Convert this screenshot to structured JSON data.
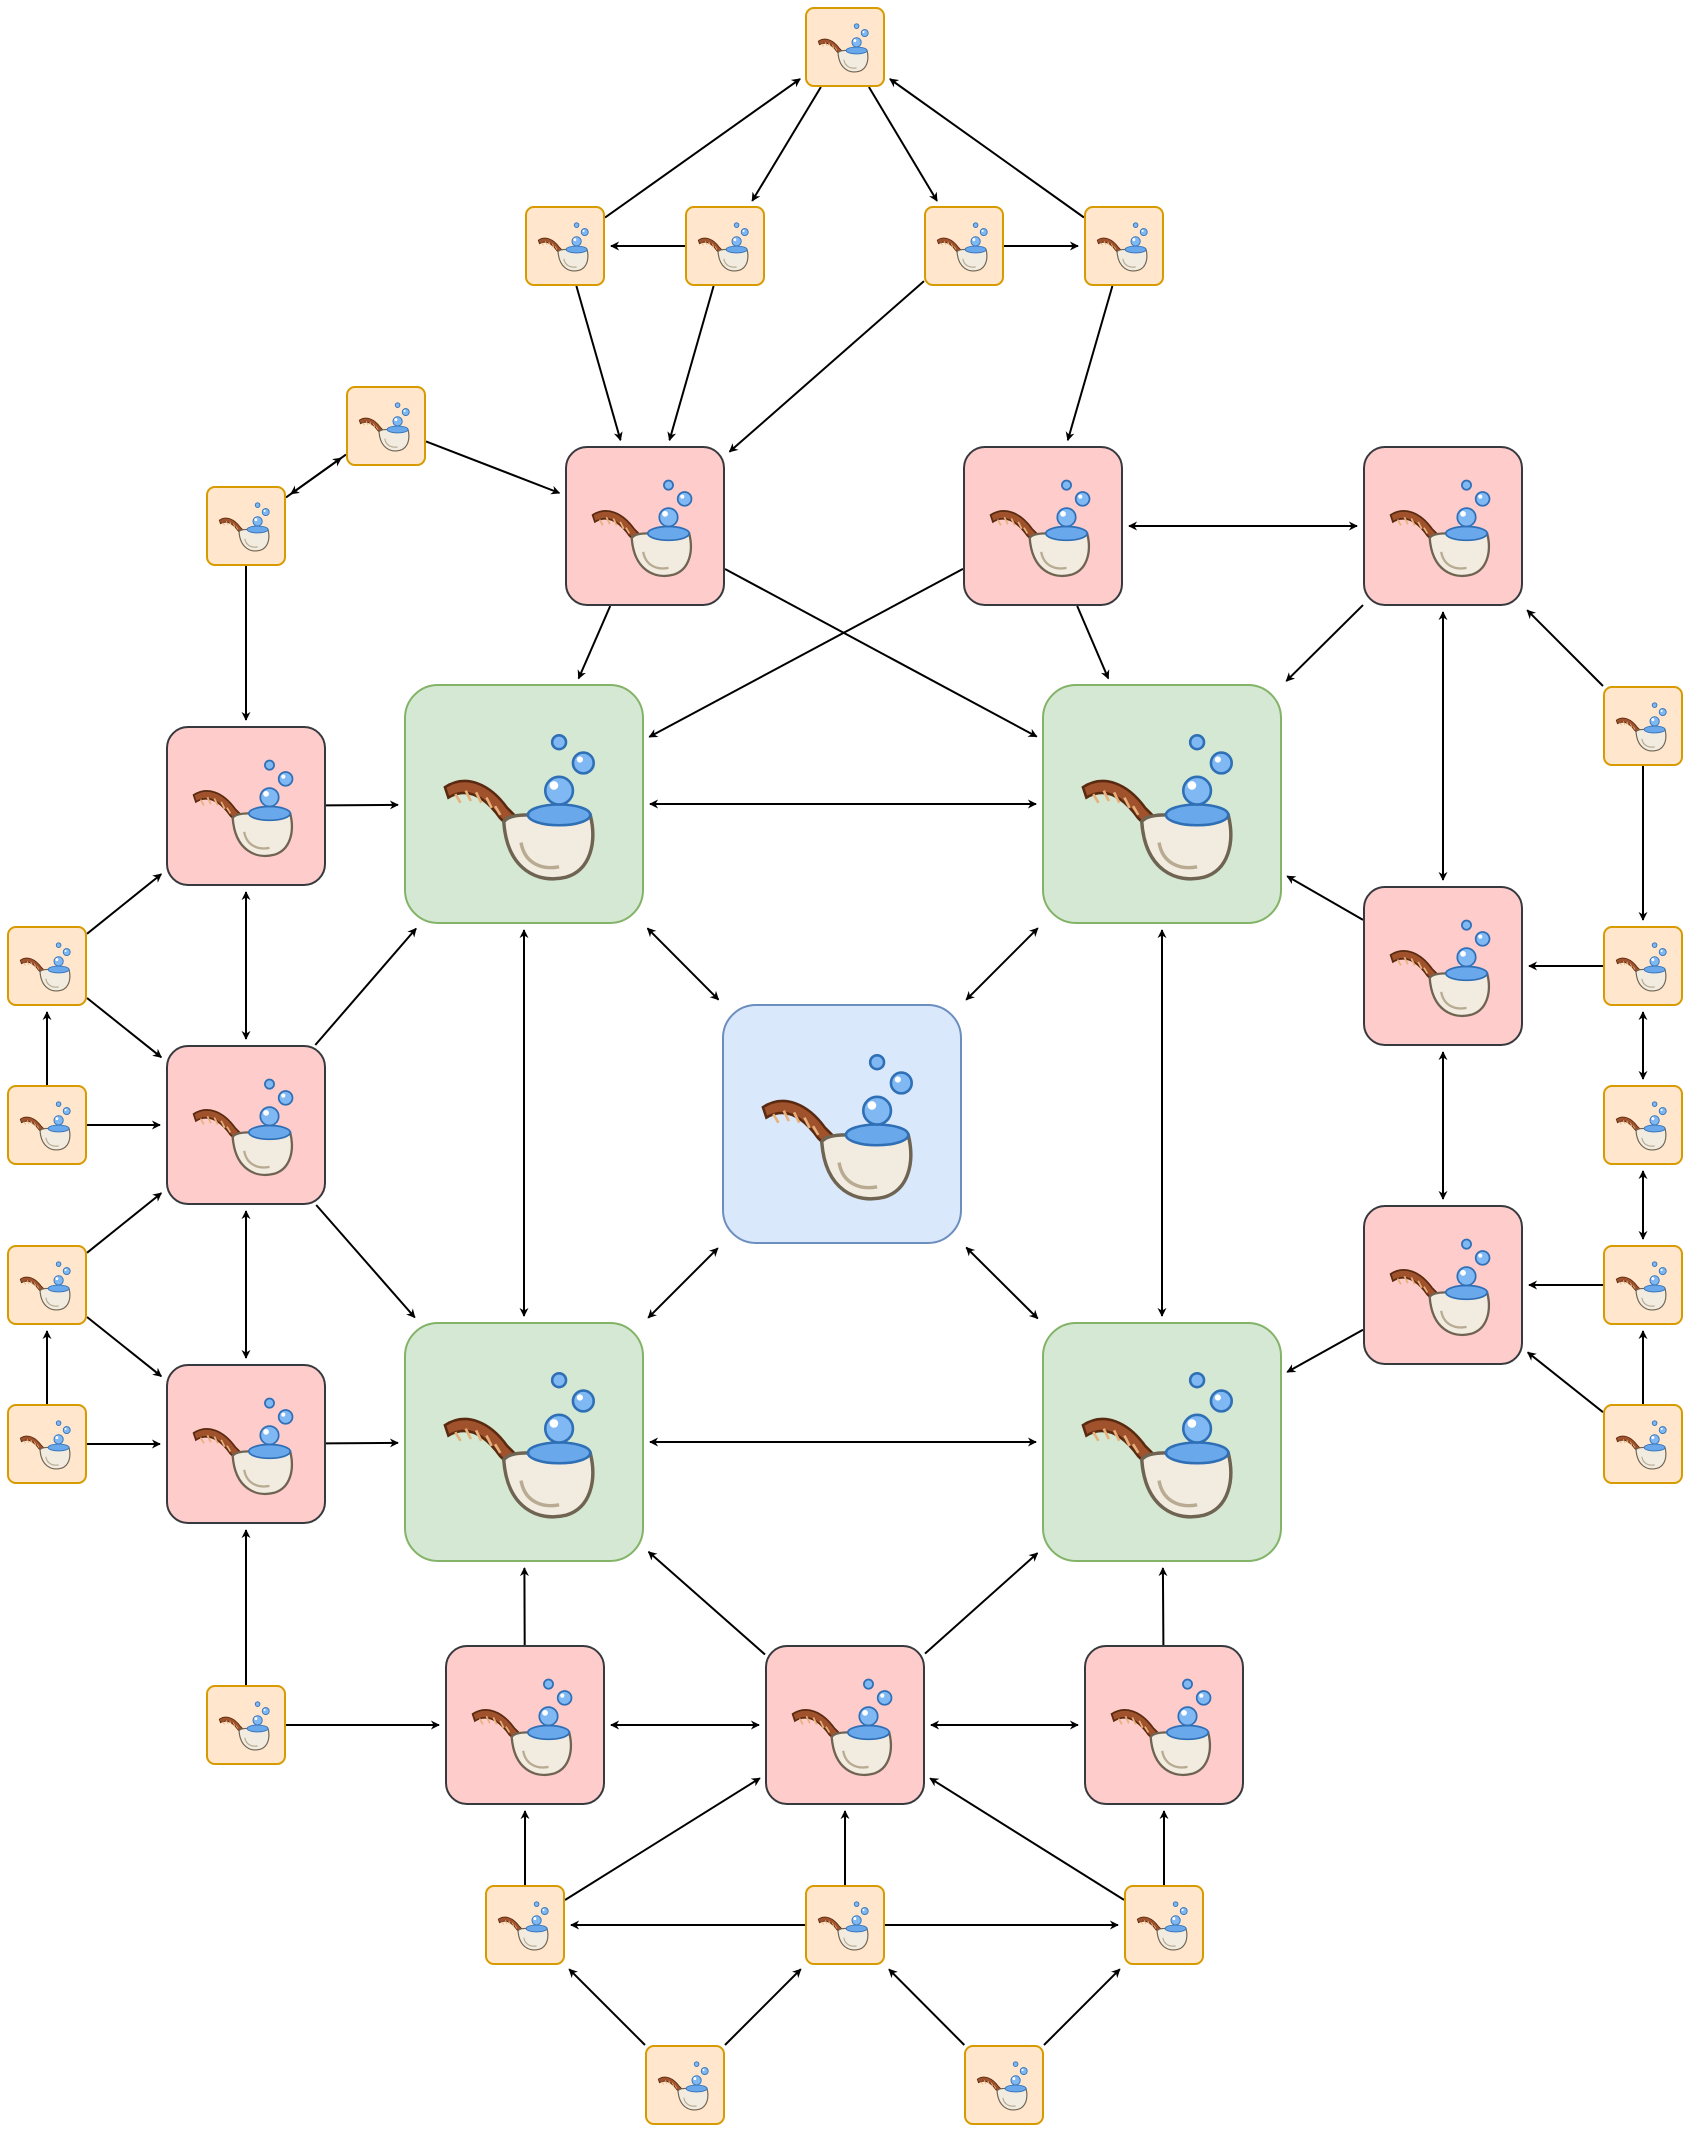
{
  "diagram": {
    "icon": "pipe-with-bubbles-icon",
    "colors": {
      "hub_fill": "#dae8fc",
      "hub_stroke": "#6c8ebf",
      "green_fill": "#d5e8d4",
      "green_stroke": "#82b366",
      "red_fill": "#ffcccc",
      "red_stroke": "#36393d",
      "orange_fill": "#ffe6cc",
      "orange_stroke": "#d79b00",
      "edge": "#000000"
    },
    "node_types": [
      "hub",
      "green",
      "red",
      "orange"
    ],
    "nodes": [
      {
        "id": "hub",
        "type": "hub"
      },
      {
        "id": "g1",
        "type": "green"
      },
      {
        "id": "g2",
        "type": "green"
      },
      {
        "id": "g3",
        "type": "green"
      },
      {
        "id": "g4",
        "type": "green"
      },
      {
        "id": "r1",
        "type": "red"
      },
      {
        "id": "r2",
        "type": "red"
      },
      {
        "id": "r3",
        "type": "red"
      },
      {
        "id": "r4",
        "type": "red"
      },
      {
        "id": "r5",
        "type": "red"
      },
      {
        "id": "r6",
        "type": "red"
      },
      {
        "id": "r7",
        "type": "red"
      },
      {
        "id": "r8",
        "type": "red"
      },
      {
        "id": "r9",
        "type": "red"
      },
      {
        "id": "r10",
        "type": "red"
      },
      {
        "id": "r11",
        "type": "red"
      },
      {
        "id": "r12",
        "type": "red"
      },
      {
        "id": "o1",
        "type": "orange"
      },
      {
        "id": "o2",
        "type": "orange"
      },
      {
        "id": "o3",
        "type": "orange"
      },
      {
        "id": "o4",
        "type": "orange"
      },
      {
        "id": "o5",
        "type": "orange"
      },
      {
        "id": "o6",
        "type": "orange"
      },
      {
        "id": "o7",
        "type": "orange"
      },
      {
        "id": "o8",
        "type": "orange"
      },
      {
        "id": "o9",
        "type": "orange"
      },
      {
        "id": "o10",
        "type": "orange"
      },
      {
        "id": "o11",
        "type": "orange"
      },
      {
        "id": "o12",
        "type": "orange"
      },
      {
        "id": "o13",
        "type": "orange"
      },
      {
        "id": "o14",
        "type": "orange"
      },
      {
        "id": "o15",
        "type": "orange"
      },
      {
        "id": "o16",
        "type": "orange"
      },
      {
        "id": "o17",
        "type": "orange"
      },
      {
        "id": "o18",
        "type": "orange"
      },
      {
        "id": "o19",
        "type": "orange"
      },
      {
        "id": "o20",
        "type": "orange"
      },
      {
        "id": "o21",
        "type": "orange"
      },
      {
        "id": "o22",
        "type": "orange"
      },
      {
        "id": "o23",
        "type": "orange"
      }
    ],
    "edges": [
      {
        "from": "o1",
        "to": "o3",
        "dir": "one"
      },
      {
        "from": "o1",
        "to": "o4",
        "dir": "one"
      },
      {
        "from": "o2",
        "to": "o1",
        "dir": "one"
      },
      {
        "from": "o5",
        "to": "o1",
        "dir": "one"
      },
      {
        "from": "o3",
        "to": "o2",
        "dir": "one"
      },
      {
        "from": "o4",
        "to": "o5",
        "dir": "one"
      },
      {
        "from": "o2",
        "to": "r1",
        "dir": "one"
      },
      {
        "from": "o3",
        "to": "r1",
        "dir": "one"
      },
      {
        "from": "o4",
        "to": "r1",
        "dir": "one"
      },
      {
        "from": "o5",
        "to": "r2",
        "dir": "one"
      },
      {
        "from": "o6",
        "to": "o7",
        "dir": "one"
      },
      {
        "from": "o7",
        "to": "o6",
        "dir": "one"
      },
      {
        "from": "o6",
        "to": "r1",
        "dir": "one"
      },
      {
        "from": "o7",
        "to": "r4",
        "dir": "one"
      },
      {
        "from": "r2",
        "to": "r3",
        "dir": "both"
      },
      {
        "from": "r1",
        "to": "g1",
        "dir": "one"
      },
      {
        "from": "r1",
        "to": "g2",
        "dir": "one"
      },
      {
        "from": "r2",
        "to": "g1",
        "dir": "one"
      },
      {
        "from": "r2",
        "to": "g2",
        "dir": "one"
      },
      {
        "from": "r3",
        "to": "g2",
        "dir": "one"
      },
      {
        "from": "r3",
        "to": "r7",
        "dir": "both"
      },
      {
        "from": "o14",
        "to": "r3",
        "dir": "one"
      },
      {
        "from": "o14",
        "to": "o15",
        "dir": "one"
      },
      {
        "from": "o15",
        "to": "r7",
        "dir": "one"
      },
      {
        "from": "o15",
        "to": "o16",
        "dir": "both"
      },
      {
        "from": "o16",
        "to": "o17",
        "dir": "both"
      },
      {
        "from": "o17",
        "to": "r8",
        "dir": "one"
      },
      {
        "from": "o18",
        "to": "o17",
        "dir": "one"
      },
      {
        "from": "o18",
        "to": "r8",
        "dir": "one"
      },
      {
        "from": "r7",
        "to": "g2",
        "dir": "one"
      },
      {
        "from": "r7",
        "to": "r8",
        "dir": "both"
      },
      {
        "from": "r8",
        "to": "g4",
        "dir": "one"
      },
      {
        "from": "r4",
        "to": "g1",
        "dir": "one"
      },
      {
        "from": "r4",
        "to": "r5",
        "dir": "both"
      },
      {
        "from": "r5",
        "to": "g1",
        "dir": "one"
      },
      {
        "from": "r5",
        "to": "g3",
        "dir": "one"
      },
      {
        "from": "r5",
        "to": "r6",
        "dir": "both"
      },
      {
        "from": "r6",
        "to": "g3",
        "dir": "one"
      },
      {
        "from": "o8",
        "to": "r4",
        "dir": "one"
      },
      {
        "from": "o8",
        "to": "r5",
        "dir": "one"
      },
      {
        "from": "o9",
        "to": "o8",
        "dir": "one"
      },
      {
        "from": "o9",
        "to": "r5",
        "dir": "one"
      },
      {
        "from": "o10",
        "to": "r5",
        "dir": "one"
      },
      {
        "from": "o10",
        "to": "r6",
        "dir": "one"
      },
      {
        "from": "o11",
        "to": "o10",
        "dir": "one"
      },
      {
        "from": "o11",
        "to": "r6",
        "dir": "one"
      },
      {
        "from": "o12",
        "to": "r6",
        "dir": "one"
      },
      {
        "from": "o12",
        "to": "r9",
        "dir": "one"
      },
      {
        "from": "g1",
        "to": "g2",
        "dir": "both"
      },
      {
        "from": "g3",
        "to": "g4",
        "dir": "both"
      },
      {
        "from": "g1",
        "to": "g3",
        "dir": "both"
      },
      {
        "from": "g2",
        "to": "g4",
        "dir": "both"
      },
      {
        "from": "g1",
        "to": "hub",
        "dir": "both"
      },
      {
        "from": "g2",
        "to": "hub",
        "dir": "both"
      },
      {
        "from": "g3",
        "to": "hub",
        "dir": "both"
      },
      {
        "from": "g4",
        "to": "hub",
        "dir": "both"
      },
      {
        "from": "r9",
        "to": "g3",
        "dir": "one"
      },
      {
        "from": "r10",
        "to": "g3",
        "dir": "one"
      },
      {
        "from": "r10",
        "to": "g4",
        "dir": "one"
      },
      {
        "from": "r11",
        "to": "g4",
        "dir": "one"
      },
      {
        "from": "r9",
        "to": "r10",
        "dir": "both"
      },
      {
        "from": "r10",
        "to": "r11",
        "dir": "both"
      },
      {
        "from": "o19",
        "to": "r9",
        "dir": "one"
      },
      {
        "from": "o19",
        "to": "r10",
        "dir": "one"
      },
      {
        "from": "o20",
        "to": "o19",
        "dir": "one"
      },
      {
        "from": "o20",
        "to": "r10",
        "dir": "one"
      },
      {
        "from": "o20",
        "to": "o21",
        "dir": "one"
      },
      {
        "from": "o21",
        "to": "r10",
        "dir": "one"
      },
      {
        "from": "o21",
        "to": "r11",
        "dir": "one"
      },
      {
        "from": "o22",
        "to": "o19",
        "dir": "one"
      },
      {
        "from": "o22",
        "to": "o20",
        "dir": "one"
      },
      {
        "from": "o23",
        "to": "o20",
        "dir": "one"
      },
      {
        "from": "o23",
        "to": "o21",
        "dir": "one"
      }
    ]
  }
}
